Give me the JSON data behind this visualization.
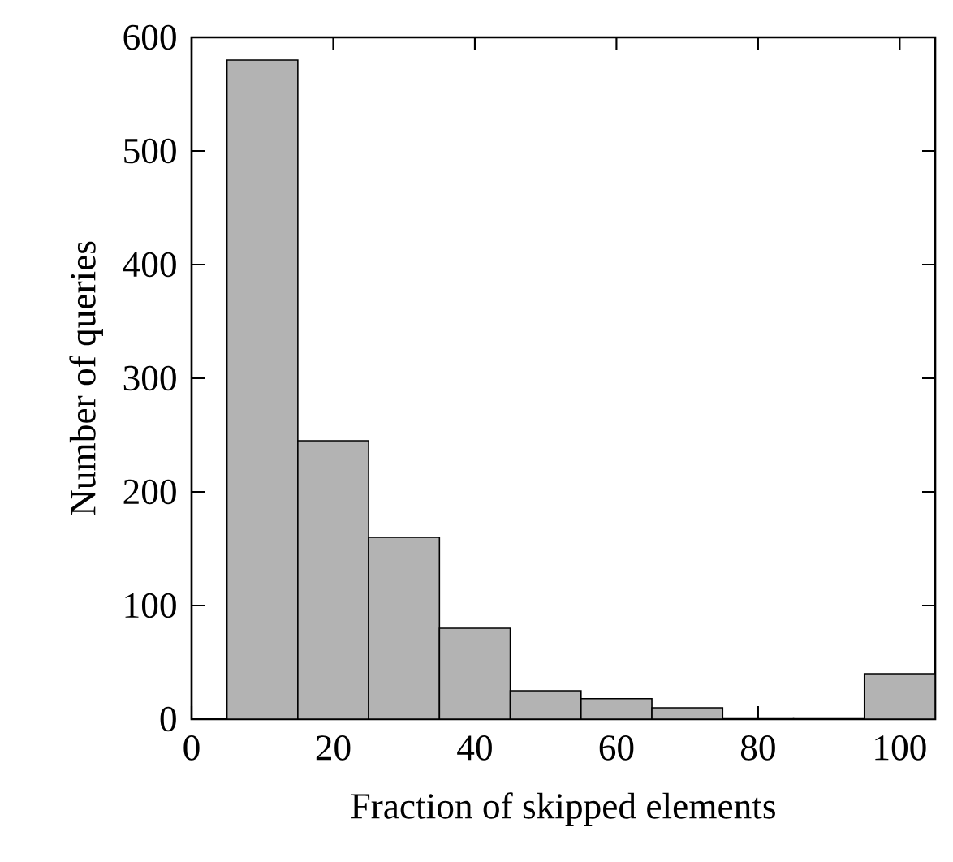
{
  "chart_data": {
    "type": "histogram",
    "xlabel": "Fraction of skipped elements",
    "ylabel": "Number of queries",
    "bins": [
      5,
      15,
      25,
      35,
      45,
      55,
      65,
      75,
      85,
      95,
      105
    ],
    "values": [
      580,
      245,
      160,
      80,
      25,
      18,
      10,
      1,
      1,
      40
    ],
    "color": "#b3b3b3",
    "xlim": [
      0,
      105
    ],
    "ylim": [
      0,
      600
    ],
    "xticks": [
      0,
      20,
      40,
      60,
      80,
      100
    ],
    "yticks": [
      0,
      100,
      200,
      300,
      400,
      500,
      600
    ],
    "grid": false
  }
}
